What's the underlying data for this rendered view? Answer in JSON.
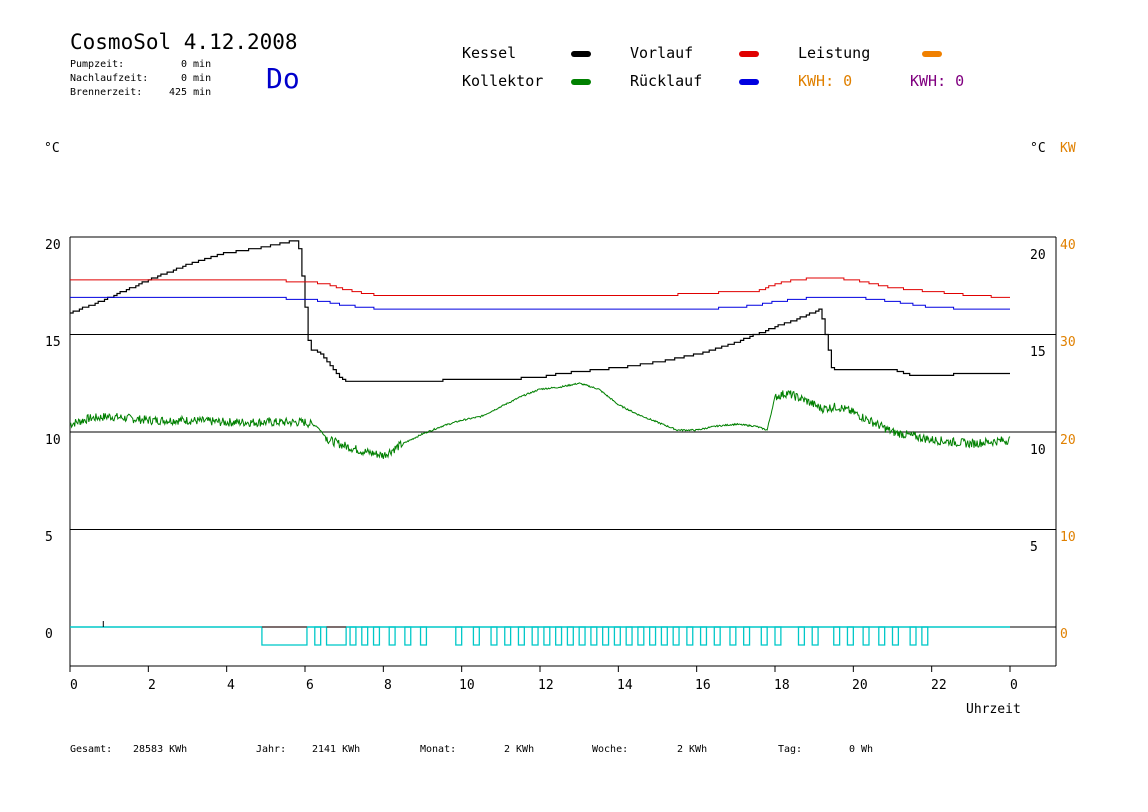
{
  "header": {
    "title": "CosmoSol 4.12.2008",
    "day": "Do",
    "stats": [
      {
        "label": "Pumpzeit:",
        "value": "0 min"
      },
      {
        "label": "Nachlaufzeit:",
        "value": "0 min"
      },
      {
        "label": "Brennerzeit:",
        "value": "425 min"
      }
    ]
  },
  "legend": {
    "items": [
      {
        "label": "Kessel",
        "color": "#000000"
      },
      {
        "label": "Vorlauf",
        "color": "#e00000"
      },
      {
        "label": "Leistung",
        "color": "#f08000"
      },
      {
        "label": "Kollektor",
        "color": "#008000"
      },
      {
        "label": "Rücklauf",
        "color": "#0000e0"
      }
    ],
    "kwh": [
      {
        "text": "KWH: 0",
        "color": "#e08000"
      },
      {
        "text": "KWH: 0",
        "color": "#800080"
      }
    ]
  },
  "axes": {
    "left_unit": "°C",
    "right_unit": "°C",
    "right_unit2": "KW",
    "xlabel": "Uhrzeit"
  },
  "footer": [
    {
      "label": "Gesamt:",
      "value": "28583 KWh"
    },
    {
      "label": "Jahr:",
      "value": "2141 KWh"
    },
    {
      "label": "Monat:",
      "value": "2 KWh"
    },
    {
      "label": "Woche:",
      "value": "2 KWh"
    },
    {
      "label": "Tag:",
      "value": "0 Wh"
    }
  ],
  "chart_data": {
    "type": "line",
    "title": "CosmoSol 4.12.2008",
    "xlabel": "Uhrzeit",
    "ylabel": "°C",
    "xlim": [
      0,
      24
    ],
    "ylim": [
      -1.5,
      20
    ],
    "x_ticks": [
      "0",
      "2",
      "4",
      "6",
      "8",
      "10",
      "12",
      "14",
      "16",
      "18",
      "20",
      "22",
      "0"
    ],
    "y_ticks_left": [
      "20",
      "15",
      "10",
      "5",
      "0"
    ],
    "y_ticks_right_c": [
      "20",
      "15",
      "10",
      "5"
    ],
    "y_ticks_right_kw": [
      "40",
      "30",
      "20",
      "10",
      "0"
    ],
    "grid": true,
    "series": [
      {
        "name": "Kessel",
        "color": "#000000",
        "points": [
          [
            0,
            16.1
          ],
          [
            1,
            16.9
          ],
          [
            2,
            17.8
          ],
          [
            3,
            18.6
          ],
          [
            4,
            19.2
          ],
          [
            5,
            19.5
          ],
          [
            5.7,
            19.8
          ],
          [
            5.82,
            19.8
          ],
          [
            5.95,
            17.5
          ],
          [
            6.1,
            14.3
          ],
          [
            6.4,
            14.0
          ],
          [
            6.7,
            13.2
          ],
          [
            7.0,
            12.6
          ],
          [
            8,
            12.6
          ],
          [
            9,
            12.6
          ],
          [
            10,
            12.7
          ],
          [
            11,
            12.7
          ],
          [
            12,
            12.8
          ],
          [
            12.5,
            13.0
          ],
          [
            13,
            13.1
          ],
          [
            14,
            13.3
          ],
          [
            15,
            13.6
          ],
          [
            16,
            14.0
          ],
          [
            17,
            14.6
          ],
          [
            18,
            15.4
          ],
          [
            18.7,
            15.9
          ],
          [
            19.15,
            16.3
          ],
          [
            19.3,
            14.8
          ],
          [
            19.45,
            13.2
          ],
          [
            20,
            13.2
          ],
          [
            21,
            13.2
          ],
          [
            21.5,
            12.9
          ],
          [
            22,
            12.9
          ],
          [
            23,
            13.0
          ],
          [
            24,
            13.0
          ]
        ]
      },
      {
        "name": "Vorlauf",
        "color": "#e00000",
        "points": [
          [
            0,
            17.8
          ],
          [
            1,
            17.8
          ],
          [
            2,
            17.8
          ],
          [
            3,
            17.8
          ],
          [
            4,
            17.8
          ],
          [
            5,
            17.8
          ],
          [
            6,
            17.7
          ],
          [
            6.5,
            17.6
          ],
          [
            7,
            17.3
          ],
          [
            7.5,
            17.1
          ],
          [
            8,
            17.0
          ],
          [
            9,
            17.0
          ],
          [
            10,
            17.0
          ],
          [
            12,
            17.0
          ],
          [
            14,
            17.0
          ],
          [
            15,
            17.0
          ],
          [
            16,
            17.1
          ],
          [
            17,
            17.2
          ],
          [
            17.5,
            17.2
          ],
          [
            18,
            17.6
          ],
          [
            18.5,
            17.8
          ],
          [
            19,
            17.9
          ],
          [
            19.5,
            17.9
          ],
          [
            20,
            17.8
          ],
          [
            20.5,
            17.6
          ],
          [
            21,
            17.4
          ],
          [
            22,
            17.2
          ],
          [
            23,
            17.0
          ],
          [
            24,
            16.9
          ]
        ]
      },
      {
        "name": "Rücklauf",
        "color": "#0000e0",
        "points": [
          [
            0,
            16.9
          ],
          [
            1,
            16.9
          ],
          [
            2,
            16.9
          ],
          [
            3,
            16.9
          ],
          [
            4,
            16.9
          ],
          [
            5,
            16.9
          ],
          [
            6,
            16.8
          ],
          [
            6.5,
            16.7
          ],
          [
            7,
            16.5
          ],
          [
            7.5,
            16.4
          ],
          [
            8,
            16.3
          ],
          [
            10,
            16.3
          ],
          [
            12,
            16.3
          ],
          [
            14,
            16.3
          ],
          [
            16,
            16.3
          ],
          [
            17,
            16.4
          ],
          [
            17.5,
            16.5
          ],
          [
            18,
            16.7
          ],
          [
            18.5,
            16.8
          ],
          [
            19,
            16.9
          ],
          [
            19.5,
            16.9
          ],
          [
            20,
            16.9
          ],
          [
            21,
            16.7
          ],
          [
            22,
            16.4
          ],
          [
            23,
            16.3
          ],
          [
            24,
            16.3
          ]
        ]
      },
      {
        "name": "Kollektor",
        "color": "#008000",
        "points": [
          [
            0,
            10.4
          ],
          [
            0.5,
            10.7
          ],
          [
            1,
            10.8
          ],
          [
            1.5,
            10.7
          ],
          [
            2,
            10.6
          ],
          [
            3,
            10.6
          ],
          [
            4,
            10.5
          ],
          [
            5,
            10.5
          ],
          [
            6,
            10.5
          ],
          [
            6.3,
            10.3
          ],
          [
            6.6,
            9.6
          ],
          [
            7,
            9.3
          ],
          [
            7.5,
            9.0
          ],
          [
            8,
            8.8
          ],
          [
            8.5,
            9.4
          ],
          [
            9,
            9.9
          ],
          [
            9.5,
            10.3
          ],
          [
            10,
            10.6
          ],
          [
            10.5,
            10.8
          ],
          [
            11,
            11.3
          ],
          [
            11.5,
            11.8
          ],
          [
            12,
            12.2
          ],
          [
            12.5,
            12.3
          ],
          [
            13,
            12.5
          ],
          [
            13.5,
            12.2
          ],
          [
            14,
            11.4
          ],
          [
            14.5,
            10.9
          ],
          [
            15,
            10.5
          ],
          [
            15.5,
            10.1
          ],
          [
            16,
            10.1
          ],
          [
            16.5,
            10.3
          ],
          [
            17,
            10.4
          ],
          [
            17.5,
            10.3
          ],
          [
            17.8,
            10.1
          ],
          [
            18,
            11.8
          ],
          [
            18.3,
            12.0
          ],
          [
            18.8,
            11.6
          ],
          [
            19.2,
            11.2
          ],
          [
            19.6,
            11.3
          ],
          [
            20,
            11.0
          ],
          [
            20.5,
            10.5
          ],
          [
            21,
            10.0
          ],
          [
            22,
            9.6
          ],
          [
            23,
            9.4
          ],
          [
            24,
            9.6
          ]
        ]
      }
    ]
  }
}
